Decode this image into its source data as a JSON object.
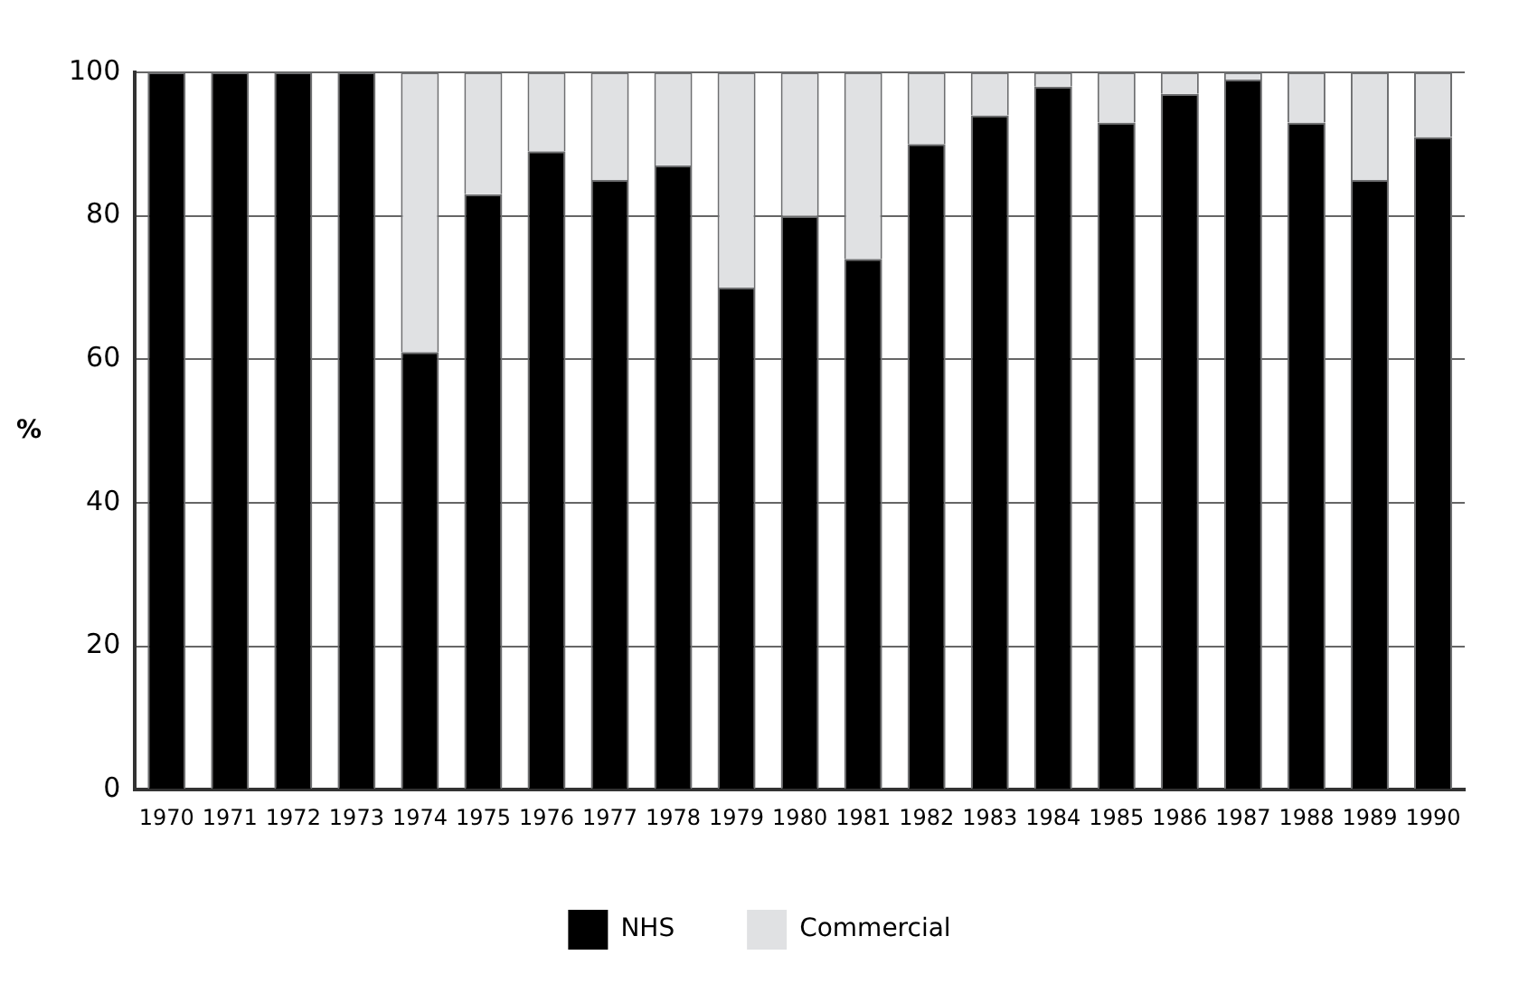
{
  "chart_data": {
    "type": "bar",
    "stacked": true,
    "ylabel": "%",
    "categories": [
      "1970",
      "1971",
      "1972",
      "1973",
      "1974",
      "1975",
      "1976",
      "1977",
      "1978",
      "1979",
      "1980",
      "1981",
      "1982",
      "1983",
      "1984",
      "1985",
      "1986",
      "1987",
      "1988",
      "1989",
      "1990"
    ],
    "series": [
      {
        "name": "NHS",
        "color": "#000000",
        "values": [
          100,
          100,
          100,
          100,
          61,
          83,
          89,
          85,
          87,
          70,
          80,
          74,
          90,
          94,
          98,
          93,
          97,
          99,
          93,
          85,
          91
        ]
      },
      {
        "name": "Commercial",
        "color": "#e0e1e3",
        "values": [
          0,
          0,
          0,
          0,
          39,
          17,
          11,
          15,
          13,
          30,
          20,
          26,
          10,
          6,
          2,
          7,
          3,
          1,
          7,
          15,
          9
        ]
      }
    ],
    "ylim": [
      0,
      100
    ],
    "yticks": [
      0,
      20,
      40,
      60,
      80,
      100
    ],
    "grid": "y",
    "legend": "bottom"
  }
}
